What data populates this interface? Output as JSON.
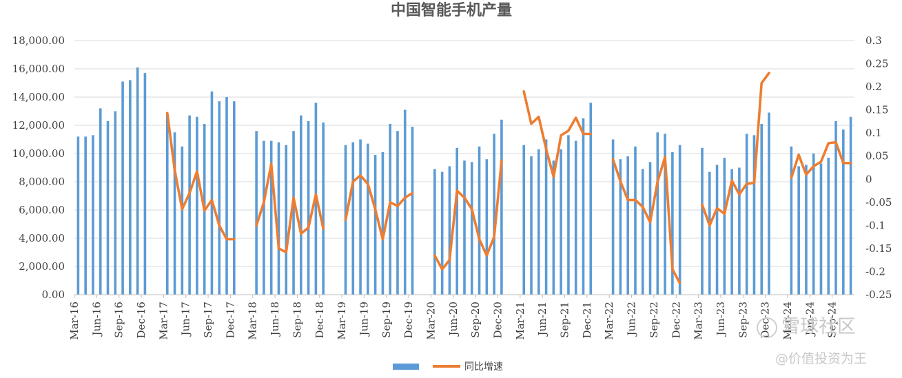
{
  "chart_data": {
    "type": "bar",
    "title": "中国智能手机产量",
    "categories": [
      "Mar-16",
      "Apr-16",
      "May-16",
      "Jun-16",
      "Jul-16",
      "Aug-16",
      "Sep-16",
      "Oct-16",
      "Nov-16",
      "Dec-16",
      "Jan-17",
      "Feb-17",
      "Mar-17",
      "Apr-17",
      "May-17",
      "Jun-17",
      "Jul-17",
      "Aug-17",
      "Sep-17",
      "Oct-17",
      "Nov-17",
      "Dec-17",
      "Jan-18",
      "Feb-18",
      "Mar-18",
      "Apr-18",
      "May-18",
      "Jun-18",
      "Jul-18",
      "Aug-18",
      "Sep-18",
      "Oct-18",
      "Nov-18",
      "Dec-18",
      "Jan-19",
      "Feb-19",
      "Mar-19",
      "Apr-19",
      "May-19",
      "Jun-19",
      "Jul-19",
      "Aug-19",
      "Sep-19",
      "Oct-19",
      "Nov-19",
      "Dec-19",
      "Jan-20",
      "Feb-20",
      "Mar-20",
      "Apr-20",
      "May-20",
      "Jun-20",
      "Jul-20",
      "Aug-20",
      "Sep-20",
      "Oct-20",
      "Nov-20",
      "Dec-20",
      "Jan-21",
      "Feb-21",
      "Mar-21",
      "Apr-21",
      "May-21",
      "Jun-21",
      "Jul-21",
      "Aug-21",
      "Sep-21",
      "Oct-21",
      "Nov-21",
      "Dec-21",
      "Jan-22",
      "Feb-22",
      "Mar-22",
      "Apr-22",
      "May-22",
      "Jun-22",
      "Jul-22",
      "Aug-22",
      "Sep-22",
      "Oct-22",
      "Nov-22",
      "Dec-22",
      "Jan-23",
      "Feb-23",
      "Mar-23",
      "Apr-23",
      "May-23",
      "Jun-23",
      "Jul-23",
      "Aug-23",
      "Sep-23",
      "Oct-23",
      "Nov-23",
      "Dec-23",
      "Jan-24",
      "Feb-24",
      "Mar-24",
      "Apr-24",
      "May-24",
      "Jun-24",
      "Jul-24",
      "Aug-24",
      "Sep-24",
      "Oct-24",
      "Nov-24"
    ],
    "tick_labels": [
      "Mar-16",
      "Jun-16",
      "Sep-16",
      "Dec-16",
      "Mar-17",
      "Jun-17",
      "Sep-17",
      "Dec-17",
      "Mar-18",
      "Jun-18",
      "Sep-18",
      "Dec-18",
      "Mar-19",
      "Jun-19",
      "Sep-19",
      "Dec-19",
      "Mar-20",
      "Jun-20",
      "Sep-20",
      "Dec-20",
      "Mar-21",
      "Jun-21",
      "Sep-21",
      "Dec-21",
      "Mar-22",
      "Jun-22",
      "Sep-22",
      "Dec-22",
      "Mar-23",
      "Jun-23",
      "Sep-23",
      "Dec-23",
      "Mar-24",
      "Jun-24",
      "Sep-24"
    ],
    "series": [
      {
        "name": "",
        "type": "bar",
        "axis": "left",
        "color": "#5B9BD5",
        "values": [
          11200,
          11200,
          11300,
          13200,
          12300,
          13000,
          15100,
          15200,
          16100,
          15700,
          null,
          null,
          12800,
          11500,
          10500,
          12700,
          12600,
          12100,
          14400,
          13700,
          14000,
          13700,
          null,
          null,
          11600,
          10900,
          10900,
          10800,
          10600,
          11600,
          12700,
          12300,
          13600,
          12200,
          null,
          null,
          10600,
          10800,
          11000,
          10700,
          9900,
          10100,
          12100,
          11600,
          13100,
          11900,
          null,
          null,
          8900,
          8700,
          9100,
          10400,
          9500,
          9400,
          10500,
          9600,
          11400,
          12400,
          null,
          null,
          10600,
          9800,
          10300,
          11000,
          9500,
          10300,
          11300,
          10900,
          12500,
          13600,
          null,
          null,
          11000,
          9600,
          9800,
          10500,
          8900,
          9400,
          11500,
          11400,
          10100,
          10600,
          null,
          null,
          10400,
          8700,
          9200,
          9700,
          8900,
          9000,
          11400,
          11300,
          12100,
          12900,
          null,
          null,
          10500,
          9100,
          9200,
          10000,
          9300,
          9700,
          12300,
          11700,
          12600
        ]
      },
      {
        "name": "同比增速",
        "type": "line",
        "axis": "right",
        "color": "#ED7D31",
        "values": [
          null,
          null,
          null,
          null,
          null,
          null,
          null,
          null,
          null,
          null,
          null,
          null,
          0.143,
          0.02,
          -0.065,
          -0.03,
          0.017,
          -0.068,
          -0.045,
          -0.1,
          -0.13,
          -0.13,
          null,
          null,
          -0.1,
          -0.05,
          0.033,
          -0.15,
          -0.158,
          -0.04,
          -0.118,
          -0.105,
          -0.033,
          -0.107,
          null,
          null,
          -0.088,
          -0.005,
          0.008,
          -0.01,
          -0.065,
          -0.13,
          -0.05,
          -0.058,
          -0.04,
          -0.03,
          null,
          null,
          -0.165,
          -0.195,
          -0.175,
          -0.025,
          -0.04,
          -0.065,
          -0.13,
          -0.165,
          -0.125,
          0.04,
          null,
          null,
          0.19,
          0.12,
          0.135,
          0.065,
          0.005,
          0.095,
          0.105,
          0.133,
          0.098,
          0.098,
          null,
          null,
          0.043,
          -0.005,
          -0.045,
          -0.045,
          -0.06,
          -0.093,
          -0.005,
          0.048,
          -0.195,
          -0.225,
          null,
          null,
          -0.055,
          -0.1,
          -0.063,
          -0.075,
          -0.003,
          -0.033,
          -0.01,
          -0.008,
          0.208,
          0.23,
          null,
          null,
          0.003,
          0.053,
          0.01,
          0.028,
          0.038,
          0.078,
          0.08,
          0.035,
          0.035
        ]
      }
    ],
    "y_left": {
      "ylim": [
        0,
        18000
      ],
      "ticks": [
        "0.00",
        "2,000.00",
        "4,000.00",
        "6,000.00",
        "8,000.00",
        "10,000.00",
        "12,000.00",
        "14,000.00",
        "16,000.00",
        "18,000.00"
      ]
    },
    "y_right": {
      "ylim": [
        -0.25,
        0.3
      ],
      "ticks": [
        "-0.25",
        "-0.2",
        "-0.15",
        "-0.1",
        "-0.05",
        "0",
        "0.05",
        "0.1",
        "0.15",
        "0.2",
        "0.25",
        "0.3"
      ]
    },
    "grid": true,
    "legend_position": "bottom"
  },
  "legend": {
    "bar_label": "",
    "line_label": "同比增速"
  },
  "watermark": {
    "brand": "雪球社区",
    "author": "@价值投资为王"
  }
}
